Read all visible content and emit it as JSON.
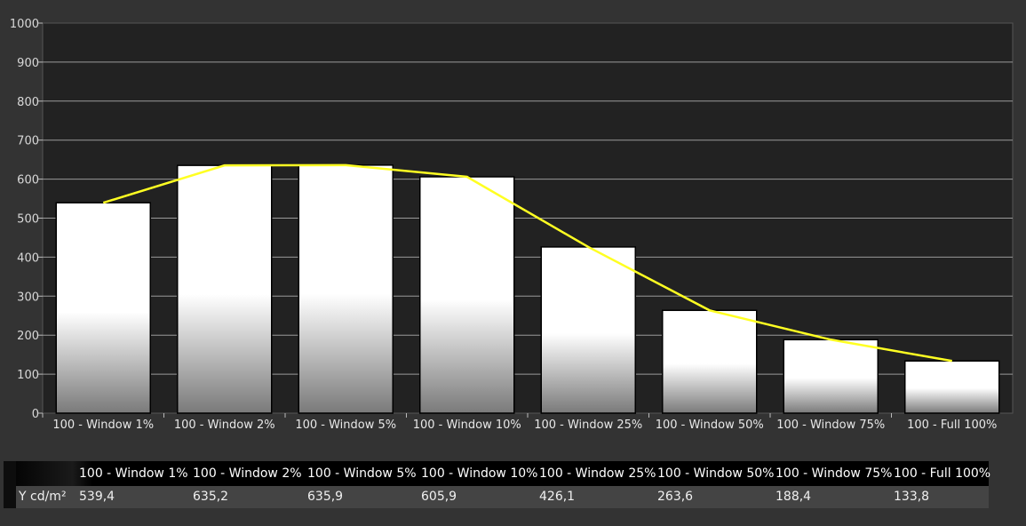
{
  "chart_data": {
    "type": "bar",
    "categories": [
      "100 - Window  1%",
      "100 - Window  2%",
      "100 - Window  5%",
      "100 - Window 10%",
      "100 - Window 25%",
      "100 - Window 50%",
      "100 - Window 75%",
      "100 - Full  100%"
    ],
    "values": [
      539.4,
      635.2,
      635.9,
      605.9,
      426.1,
      263.6,
      188.4,
      133.8
    ],
    "line_values": [
      539.4,
      635.2,
      635.9,
      605.9,
      426.1,
      263.6,
      188.4,
      133.8
    ],
    "ylim": [
      0,
      1000
    ],
    "yticks": [
      "0",
      "100",
      "200",
      "300",
      "400",
      "500",
      "600",
      "700",
      "800",
      "900",
      "1000"
    ],
    "grid": true,
    "colors": {
      "bar_fill_top": "#ffffff",
      "bar_fill_bottom": "#7a7a7a",
      "line": "#ffff22",
      "plot_bg": "#222222",
      "grid": "#9a9a9a"
    }
  },
  "table": {
    "headers": [
      "100 - Window  1%",
      "100 - Window  2%",
      "100 - Window  5%",
      "100 - Window 10%",
      "100 - Window 25%",
      "100 - Window 50%",
      "100 - Window 75%",
      "100 - Full  100%"
    ],
    "row_label": "Y cd/m²",
    "row_values": [
      "539,4",
      "635,2",
      "635,9",
      "605,9",
      "426,1",
      "263,6",
      "188,4",
      "133,8"
    ]
  }
}
